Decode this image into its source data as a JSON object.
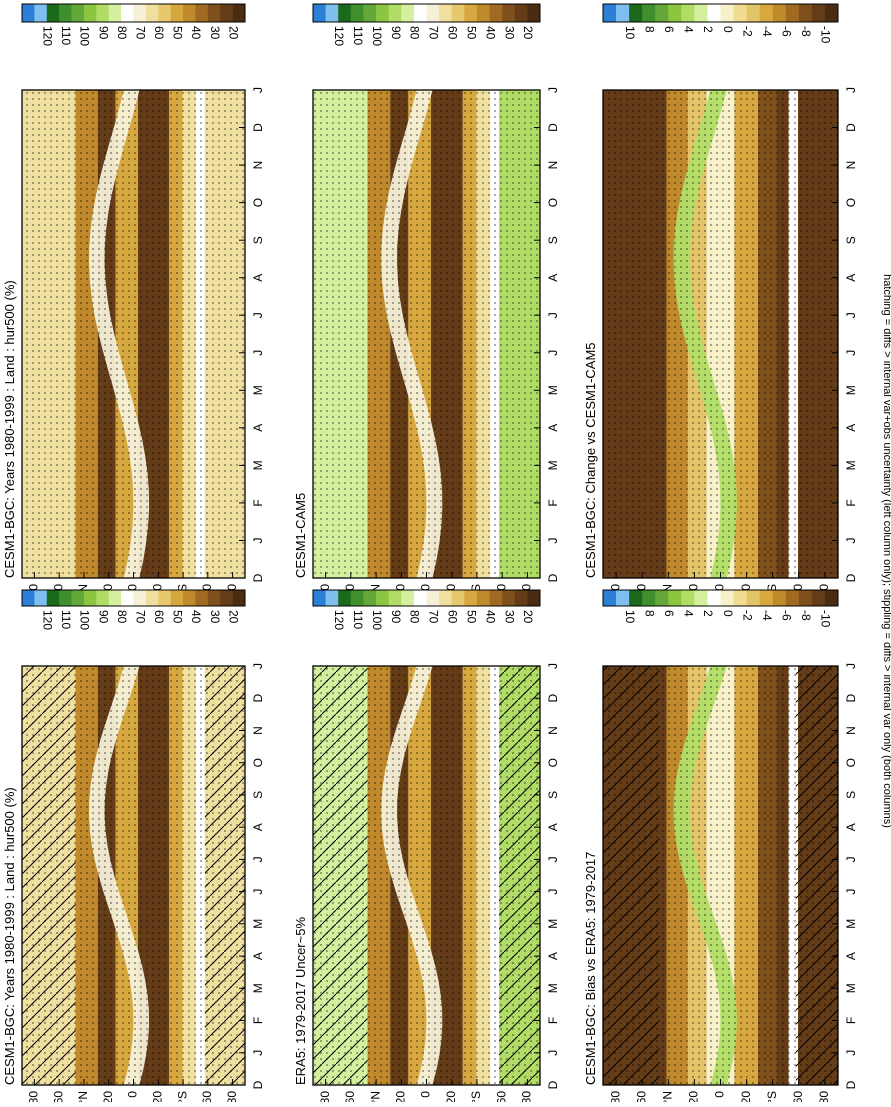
{
  "footnote": "hatching = diffs > internal var+obs uncertainty (left column only); stippling = diffs > internal var only (both columns)",
  "abs_palette": [
    "#2c7fd6",
    "#7fbff0",
    "#1b6a1b",
    "#3f8f2d",
    "#64a83a",
    "#8cc540",
    "#b1dd66",
    "#d4ef9e",
    "#ffffff",
    "#f6f0d8",
    "#f0e0a0",
    "#e8c86e",
    "#d8a840",
    "#c08a2c",
    "#a06a22",
    "#80501c",
    "#653c18",
    "#4a2c12"
  ],
  "diff_palette": [
    "#2c7fd6",
    "#7fbff0",
    "#1b6a1b",
    "#3f8f2d",
    "#64a83a",
    "#8cc540",
    "#b1dd66",
    "#d4ef9e",
    "#ffffff",
    "#f8f0c8",
    "#efdc90",
    "#e4c468",
    "#d8a840",
    "#c08a2c",
    "#a06a22",
    "#80501c",
    "#653c18",
    "#4a2c12"
  ],
  "abs_ticks": [
    "120",
    "110",
    "100",
    "90",
    "80",
    "70",
    "60",
    "50",
    "40",
    "30",
    "20"
  ],
  "diff_ticks": [
    "10",
    "8",
    "6",
    "4",
    "2",
    "0",
    "-2",
    "-4",
    "-6",
    "-8",
    "-10"
  ],
  "lat_ticks": [
    "80",
    "60",
    "°N",
    "20",
    "0",
    "20",
    "°S",
    "60",
    "80"
  ],
  "month_ticks": [
    "D",
    "J",
    "F",
    "M",
    "A",
    "M",
    "J",
    "J",
    "A",
    "S",
    "O",
    "N",
    "D",
    "J"
  ],
  "chart_data": [
    {
      "type": "heatmap",
      "title": "CESM1-BGC: Years 1980-1999 : Land : hur500 (%)",
      "colorbar": "abs",
      "hatching": true,
      "stippling": true
    },
    {
      "type": "heatmap",
      "title": "CESM1-BGC: Years 1980-1999 : Land : hur500 (%)",
      "colorbar": "abs",
      "hatching": false,
      "stippling": true
    },
    {
      "type": "heatmap",
      "title": "ERA5: 1979-2017 Uncer~5%",
      "colorbar": "abs",
      "hatching": true,
      "stippling": true
    },
    {
      "type": "heatmap",
      "title": "CESM1-CAM5",
      "colorbar": "abs",
      "hatching": false,
      "stippling": true
    },
    {
      "type": "heatmap",
      "title": "CESM1-BGC: Bias vs ERA5: 1979-2017",
      "colorbar": "diff",
      "hatching": true,
      "stippling": true
    },
    {
      "type": "heatmap",
      "title": "CESM1-BGC: Change vs CESM1-CAM5",
      "colorbar": "diff",
      "hatching": false,
      "stippling": true
    }
  ]
}
